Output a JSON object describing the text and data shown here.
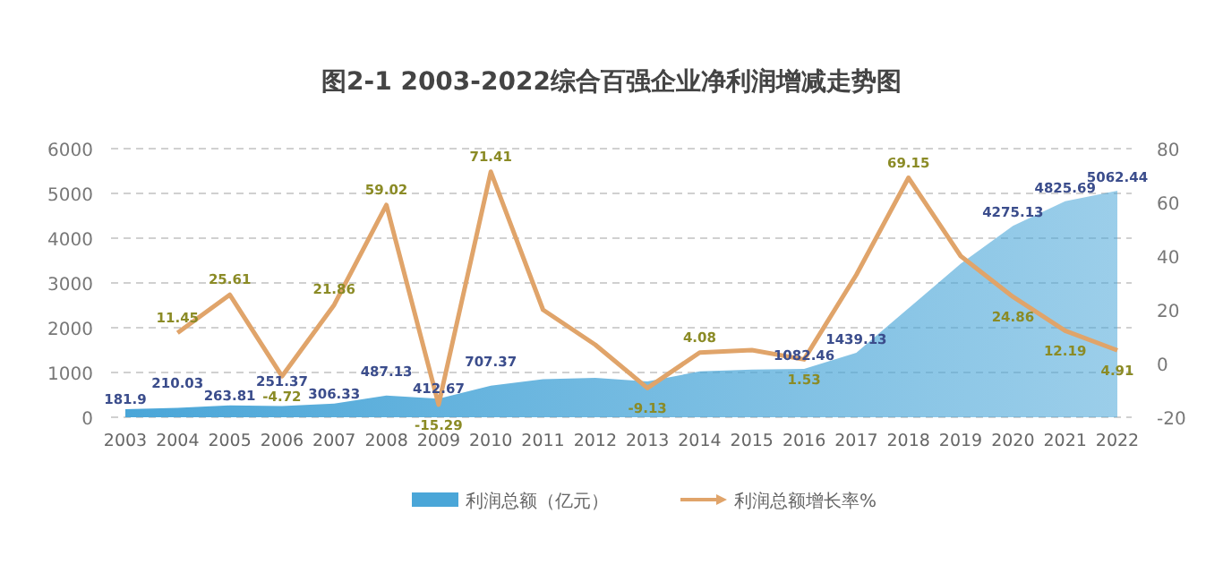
{
  "chart_data": {
    "type": "area",
    "title": "图2-1  2003-2022综合百强企业净利润增减走势图",
    "categories": [
      "2003",
      "2004",
      "2005",
      "2006",
      "2007",
      "2008",
      "2009",
      "2010",
      "2011",
      "2012",
      "2013",
      "2014",
      "2015",
      "2016",
      "2017",
      "2018",
      "2019",
      "2020",
      "2021",
      "2022"
    ],
    "series": [
      {
        "name": "利润总额（亿元）",
        "color": "#4aa6d8",
        "values": [
          181.9,
          210.03,
          263.81,
          251.37,
          306.33,
          487.13,
          412.67,
          707.37,
          850,
          880,
          800,
          1024,
          1066,
          1082.46,
          1439.13,
          2434,
          3428,
          4275.13,
          4825.69,
          5062.44
        ],
        "value_labels": [
          "181.9",
          "210.03",
          "263.81",
          "251.37",
          "306.33",
          "487.13",
          "412.67",
          "707.37",
          null,
          null,
          null,
          null,
          null,
          "1082.46",
          "1439.13",
          null,
          null,
          "4275.13",
          "4825.69",
          "5062.44"
        ]
      },
      {
        "name": "利润总额增长率%",
        "type": "line",
        "axis": "y2",
        "color": "#e0a46a",
        "values": [
          null,
          11.45,
          25.61,
          -4.72,
          21.86,
          59.02,
          -15.29,
          71.41,
          20,
          7,
          -9.13,
          4.08,
          5,
          1.53,
          33,
          69.15,
          40,
          24.86,
          12.19,
          4.91
        ],
        "value_labels": [
          null,
          "11.45",
          "25.61",
          "-4.72",
          "21.86",
          "59.02",
          "-15.29",
          "71.41",
          null,
          null,
          "-9.13",
          "4.08",
          null,
          "1.53",
          null,
          "69.15",
          null,
          "24.86",
          "12.19",
          "4.91"
        ]
      }
    ],
    "ylim": [
      0,
      6000
    ],
    "yticks": [
      0,
      1000,
      2000,
      3000,
      4000,
      5000,
      6000
    ],
    "y2lim": [
      -20,
      80
    ],
    "y2ticks": [
      -20,
      0,
      20,
      40,
      60,
      80
    ],
    "grid": "y",
    "legend": "bottom",
    "marker": "none",
    "line_style": "solid"
  }
}
